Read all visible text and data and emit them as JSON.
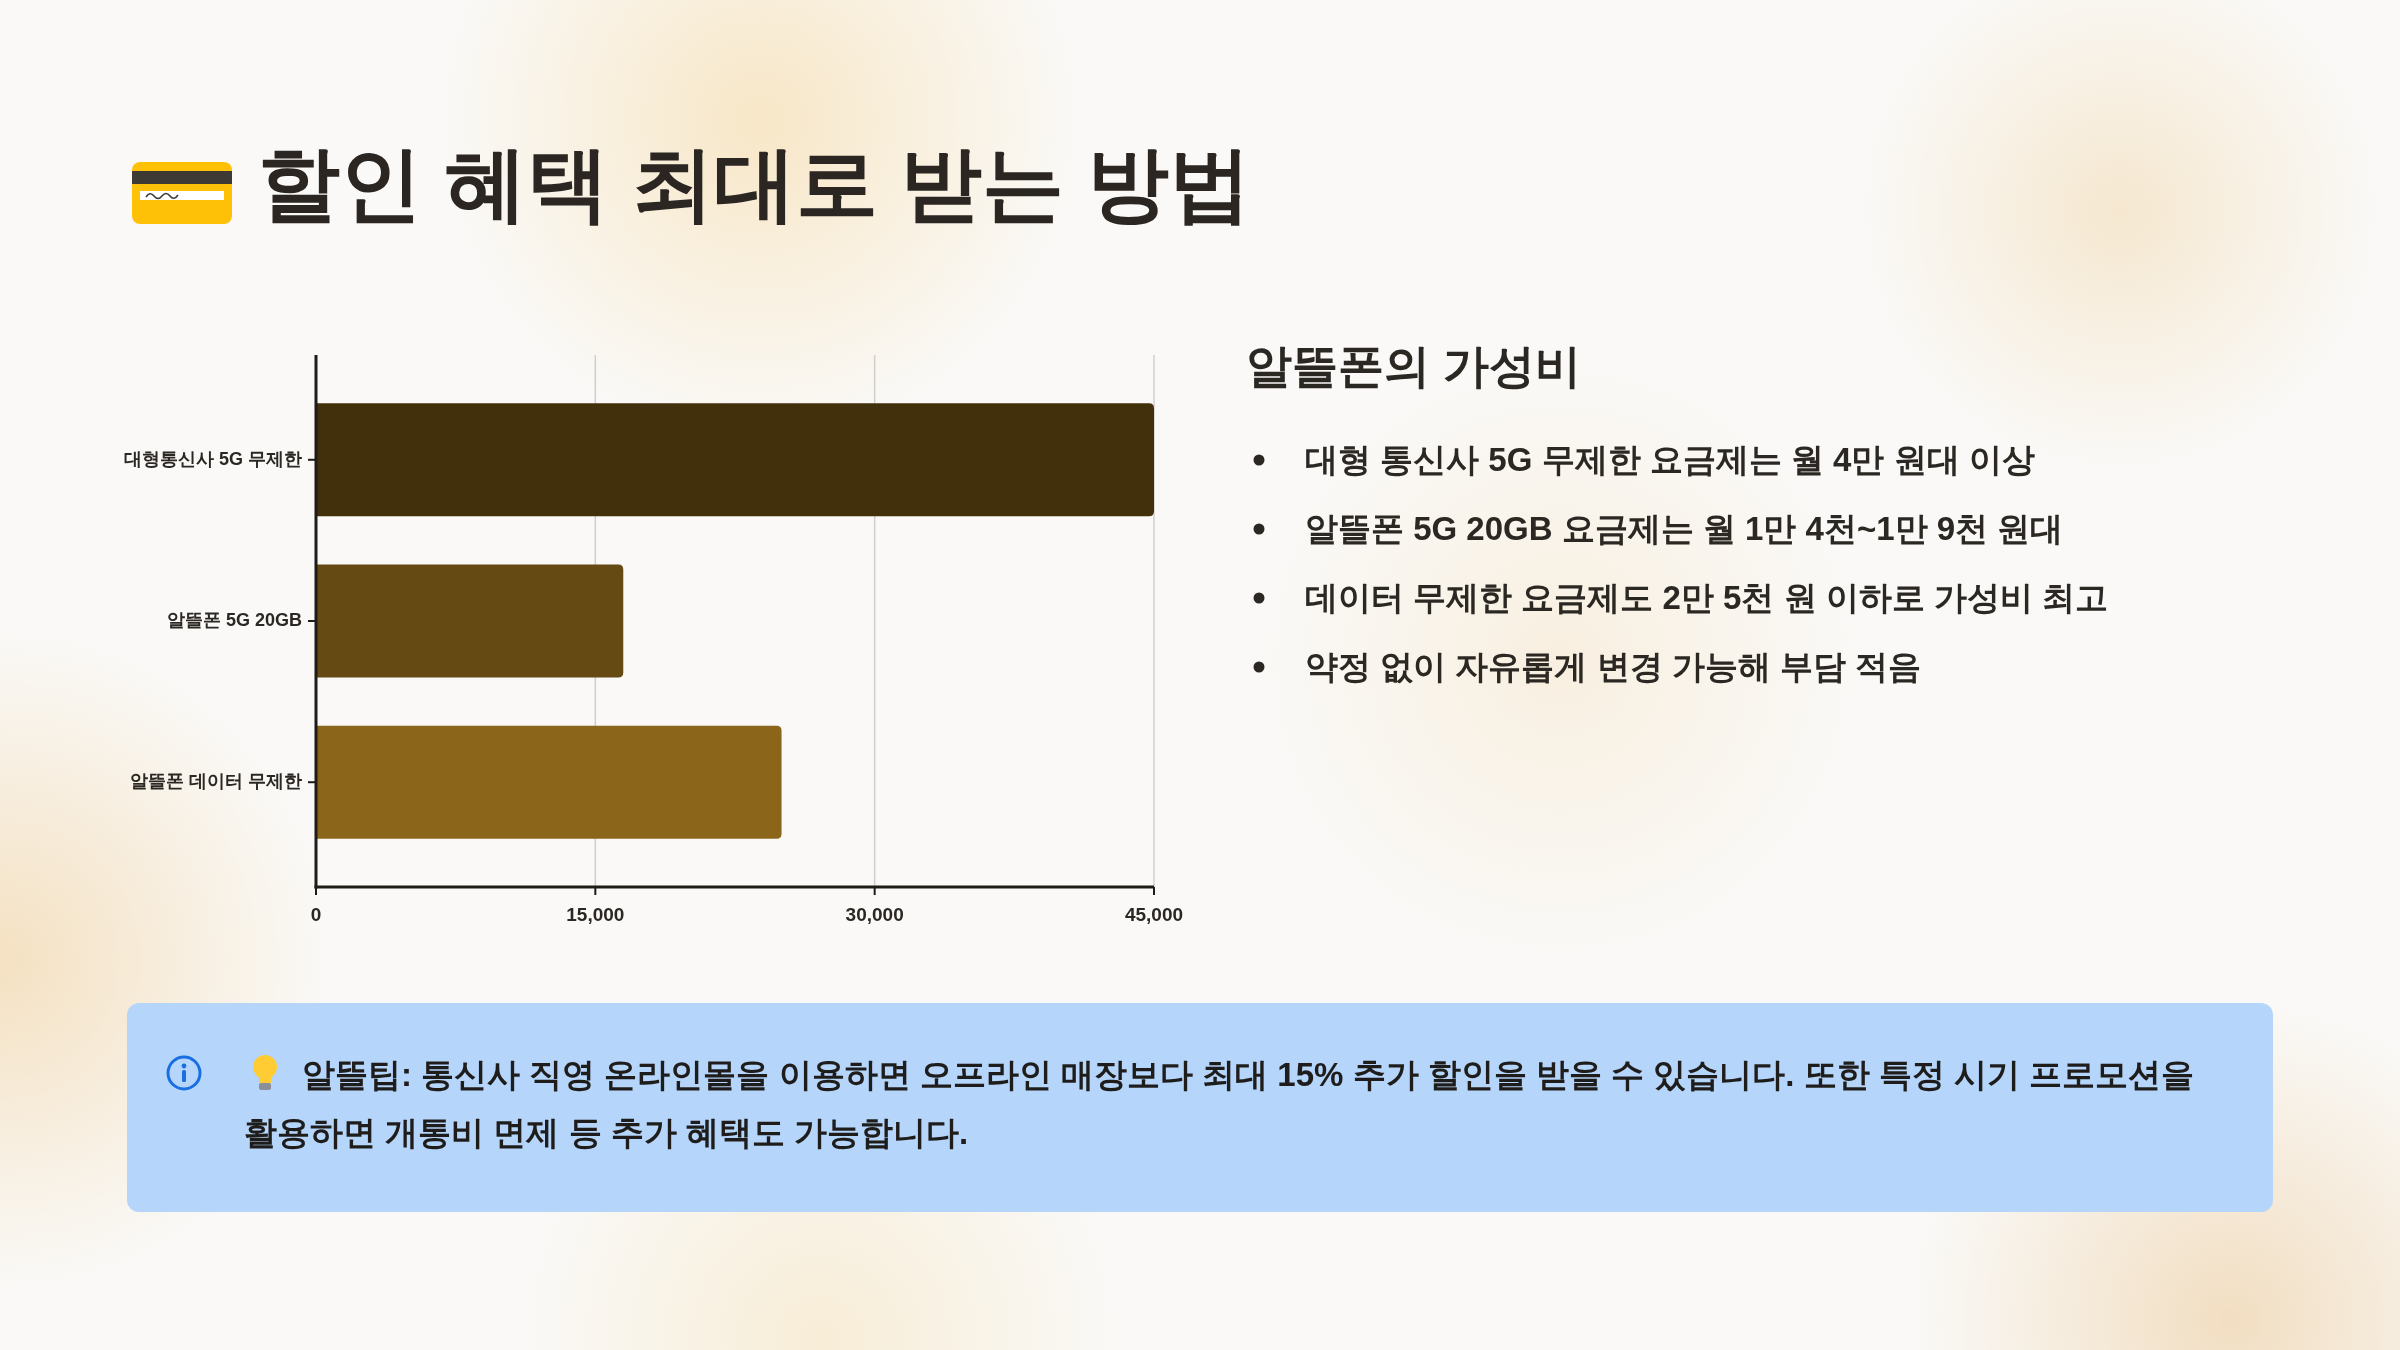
{
  "chart_data": [
    {
      "type": "bar",
      "title": "할인 혜택 최대로 받는 방법",
      "orientation": "horizontal",
      "categories": [
        "대형통신사 5G 무제한",
        "알뜰폰 5G 20GB",
        "알뜰폰 데이터 무제한"
      ],
      "values": [
        45000,
        16500,
        25000
      ],
      "colors": [
        "#42300d",
        "#664a14",
        "#8b651a"
      ],
      "xlim": [
        0,
        45000
      ],
      "xticks": [
        0,
        {
          "value": 15000,
          "label": "15,000"
        },
        {
          "value": 30000,
          "label": "30,000"
        },
        {
          "value": 45000,
          "label": "45,000"
        }
      ],
      "grid": "x",
      "annotations": [
        "알뜰팁: 통신사 직영 온라인몰을 이용하면 오프라인 매장보다 최대 15% 추가 할인을 받을 수 있습니다. 또한 특정 시기 프로모션을 활용하면 개통비 면제 등 추가 혜택도 가능합니다."
      ]
    },
    {
      "type": "other",
      "title": "알뜰폰의 가성비",
      "annotations": [
        "대형 통신사 5G 무제한 요금제는 월 4만 원대 이상",
        "알뜰폰 5G 20GB 요금제는 월 1만 4천~1만 9천 원대",
        "데이터 무제한 요금제도 2만 5천 원 이하로 가성비 최고",
        "약정 없이 자유롭게 변경 가능해 부담 적음"
      ]
    }
  ]
}
